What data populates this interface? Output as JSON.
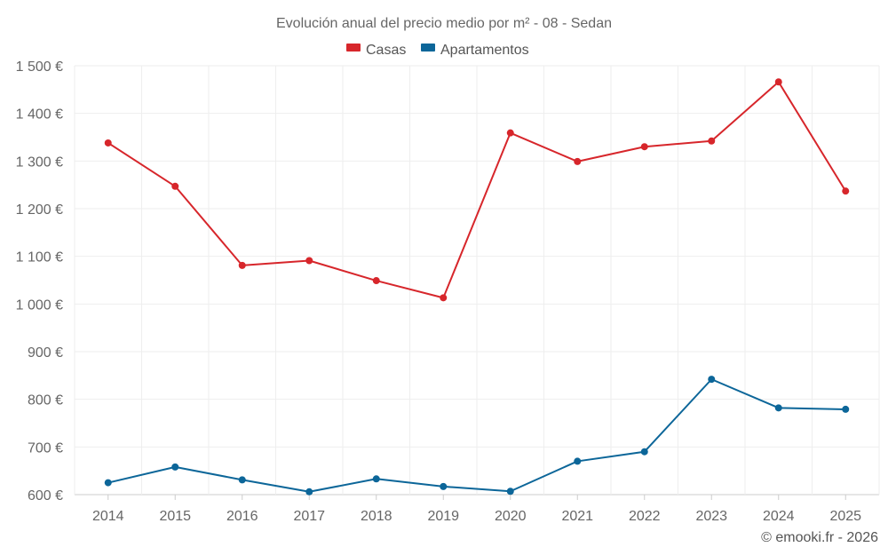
{
  "chart_data": {
    "type": "line",
    "title": "Evolución anual del precio medio por m² - 08 - Sedan",
    "categories": [
      "2014",
      "2015",
      "2016",
      "2017",
      "2018",
      "2019",
      "2020",
      "2021",
      "2022",
      "2023",
      "2024",
      "2025"
    ],
    "series": [
      {
        "name": "Casas",
        "color": "#d7262b",
        "values": [
          1338,
          1247,
          1081,
          1091,
          1049,
          1013,
          1359,
          1299,
          1330,
          1342,
          1466,
          1237
        ]
      },
      {
        "name": "Apartamentos",
        "color": "#0c6699",
        "values": [
          625,
          658,
          631,
          606,
          633,
          617,
          607,
          670,
          690,
          842,
          782,
          779
        ]
      }
    ],
    "ylim": [
      600,
      1500
    ],
    "yticks": [
      600,
      700,
      800,
      900,
      1000,
      1100,
      1200,
      1300,
      1400,
      1500
    ],
    "ytick_labels": [
      "600 €",
      "700 €",
      "800 €",
      "900 €",
      "1 000 €",
      "1 100 €",
      "1 200 €",
      "1 300 €",
      "1 400 €",
      "1 500 €"
    ],
    "xlabel": "",
    "ylabel": "",
    "grid": true,
    "legend_position": "top-center"
  },
  "credit": "© emooki.fr - 2026"
}
